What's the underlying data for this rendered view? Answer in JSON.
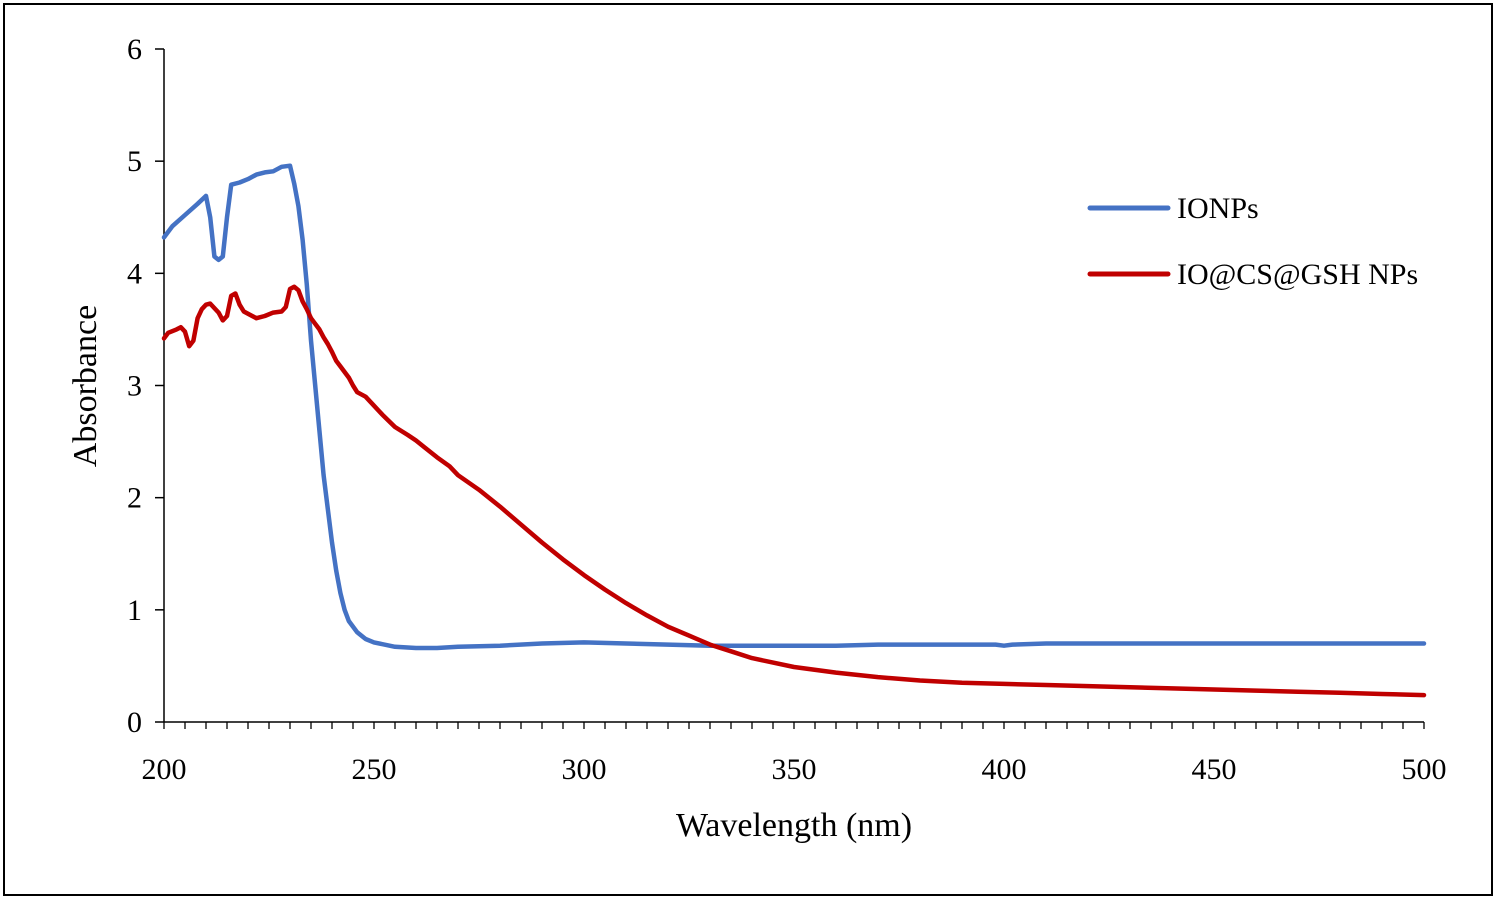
{
  "chart_data": {
    "type": "line",
    "title": "",
    "xlabel": "Wavelength (nm)",
    "ylabel": "Absorbance",
    "xlim": [
      200,
      500
    ],
    "ylim": [
      0,
      6
    ],
    "x_ticks": [
      200,
      250,
      300,
      350,
      400,
      450,
      500
    ],
    "y_ticks": [
      0,
      1,
      2,
      3,
      4,
      5,
      6
    ],
    "x_minor_step": 5,
    "grid": false,
    "legend_position": "right",
    "series": [
      {
        "name": "IONPs",
        "color": "#4472C4",
        "points": [
          [
            200,
            4.32
          ],
          [
            202,
            4.42
          ],
          [
            205,
            4.52
          ],
          [
            208,
            4.62
          ],
          [
            210,
            4.69
          ],
          [
            211,
            4.5
          ],
          [
            212,
            4.15
          ],
          [
            213,
            4.12
          ],
          [
            214,
            4.15
          ],
          [
            215,
            4.5
          ],
          [
            216,
            4.79
          ],
          [
            218,
            4.81
          ],
          [
            220,
            4.84
          ],
          [
            222,
            4.88
          ],
          [
            224,
            4.9
          ],
          [
            226,
            4.91
          ],
          [
            228,
            4.95
          ],
          [
            230,
            4.96
          ],
          [
            231,
            4.8
          ],
          [
            232,
            4.6
          ],
          [
            233,
            4.3
          ],
          [
            234,
            3.9
          ],
          [
            235,
            3.4
          ],
          [
            236,
            3.0
          ],
          [
            237,
            2.6
          ],
          [
            238,
            2.2
          ],
          [
            239,
            1.9
          ],
          [
            240,
            1.6
          ],
          [
            241,
            1.35
          ],
          [
            242,
            1.15
          ],
          [
            243,
            1.0
          ],
          [
            244,
            0.9
          ],
          [
            246,
            0.8
          ],
          [
            248,
            0.74
          ],
          [
            250,
            0.71
          ],
          [
            255,
            0.67
          ],
          [
            260,
            0.66
          ],
          [
            265,
            0.66
          ],
          [
            270,
            0.67
          ],
          [
            280,
            0.68
          ],
          [
            290,
            0.7
          ],
          [
            300,
            0.71
          ],
          [
            310,
            0.7
          ],
          [
            320,
            0.69
          ],
          [
            330,
            0.68
          ],
          [
            340,
            0.68
          ],
          [
            350,
            0.68
          ],
          [
            360,
            0.68
          ],
          [
            370,
            0.69
          ],
          [
            380,
            0.69
          ],
          [
            390,
            0.69
          ],
          [
            398,
            0.69
          ],
          [
            400,
            0.68
          ],
          [
            402,
            0.69
          ],
          [
            410,
            0.7
          ],
          [
            420,
            0.7
          ],
          [
            430,
            0.7
          ],
          [
            440,
            0.7
          ],
          [
            450,
            0.7
          ],
          [
            460,
            0.7
          ],
          [
            470,
            0.7
          ],
          [
            480,
            0.7
          ],
          [
            490,
            0.7
          ],
          [
            500,
            0.7
          ]
        ]
      },
      {
        "name": "IO@CS@GSH NPs",
        "color": "#C00000",
        "points": [
          [
            200,
            3.42
          ],
          [
            201,
            3.47
          ],
          [
            203,
            3.5
          ],
          [
            204,
            3.52
          ],
          [
            205,
            3.48
          ],
          [
            206,
            3.35
          ],
          [
            207,
            3.4
          ],
          [
            208,
            3.6
          ],
          [
            209,
            3.68
          ],
          [
            210,
            3.72
          ],
          [
            211,
            3.73
          ],
          [
            213,
            3.65
          ],
          [
            214,
            3.58
          ],
          [
            215,
            3.62
          ],
          [
            216,
            3.8
          ],
          [
            217,
            3.82
          ],
          [
            218,
            3.72
          ],
          [
            219,
            3.66
          ],
          [
            221,
            3.62
          ],
          [
            222,
            3.6
          ],
          [
            224,
            3.62
          ],
          [
            226,
            3.65
          ],
          [
            228,
            3.66
          ],
          [
            229,
            3.7
          ],
          [
            230,
            3.86
          ],
          [
            231,
            3.88
          ],
          [
            232,
            3.85
          ],
          [
            233,
            3.75
          ],
          [
            234,
            3.68
          ],
          [
            235,
            3.6
          ],
          [
            236,
            3.55
          ],
          [
            237,
            3.5
          ],
          [
            238,
            3.43
          ],
          [
            239,
            3.37
          ],
          [
            240,
            3.3
          ],
          [
            241,
            3.22
          ],
          [
            242,
            3.17
          ],
          [
            243,
            3.12
          ],
          [
            244,
            3.07
          ],
          [
            245,
            3.0
          ],
          [
            246,
            2.94
          ],
          [
            248,
            2.9
          ],
          [
            250,
            2.82
          ],
          [
            252,
            2.74
          ],
          [
            255,
            2.63
          ],
          [
            258,
            2.56
          ],
          [
            260,
            2.51
          ],
          [
            262,
            2.45
          ],
          [
            265,
            2.36
          ],
          [
            268,
            2.28
          ],
          [
            270,
            2.2
          ],
          [
            275,
            2.07
          ],
          [
            280,
            1.92
          ],
          [
            285,
            1.76
          ],
          [
            290,
            1.6
          ],
          [
            295,
            1.45
          ],
          [
            300,
            1.31
          ],
          [
            305,
            1.18
          ],
          [
            310,
            1.06
          ],
          [
            315,
            0.95
          ],
          [
            320,
            0.85
          ],
          [
            325,
            0.77
          ],
          [
            330,
            0.69
          ],
          [
            335,
            0.63
          ],
          [
            340,
            0.57
          ],
          [
            345,
            0.53
          ],
          [
            350,
            0.49
          ],
          [
            360,
            0.44
          ],
          [
            370,
            0.4
          ],
          [
            380,
            0.37
          ],
          [
            390,
            0.35
          ],
          [
            400,
            0.34
          ],
          [
            410,
            0.33
          ],
          [
            420,
            0.32
          ],
          [
            430,
            0.31
          ],
          [
            440,
            0.3
          ],
          [
            450,
            0.29
          ],
          [
            460,
            0.28
          ],
          [
            470,
            0.27
          ],
          [
            480,
            0.26
          ],
          [
            490,
            0.25
          ],
          [
            500,
            0.24
          ]
        ]
      }
    ]
  }
}
